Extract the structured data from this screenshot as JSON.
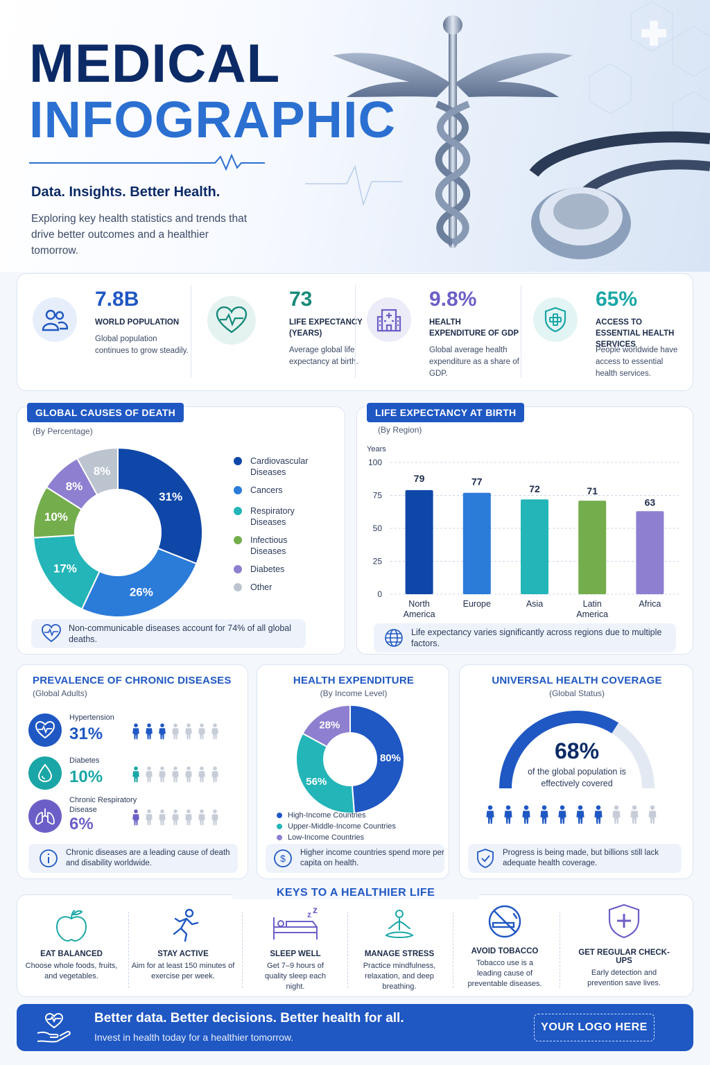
{
  "header": {
    "title_line1": "MEDICAL",
    "title_line2": "INFOGRAPHIC",
    "tagline": "Data. Insights. Better Health.",
    "description": "Exploring key health statistics and trends that drive better outcomes and a healthier tomorrow."
  },
  "stats": [
    {
      "value": "7.8B",
      "label": "WORLD POPULATION",
      "text": "Global population continues to grow steadily.",
      "icon": "people-icon",
      "color": "#1f57c3"
    },
    {
      "value": "73",
      "label": "LIFE EXPECTANCY (YEARS)",
      "text": "Average global life expectancy at birth.",
      "icon": "heart-pulse-icon",
      "color": "#178a7a"
    },
    {
      "value": "9.8%",
      "label": "HEALTH EXPENDITURE OF GDP",
      "text": "Global average health expenditure as a share of GDP.",
      "icon": "hospital-icon",
      "color": "#6b5fc7"
    },
    {
      "value": "65%",
      "label": "ACCESS TO ESSENTIAL HEALTH SERVICES",
      "text": "People worldwide have access to essential health services.",
      "icon": "shield-cross-icon",
      "color": "#1aa6a6"
    }
  ],
  "causes": {
    "title": "GLOBAL CAUSES OF DEATH",
    "subtitle": "(By Percentage)",
    "note": "Non-communicable diseases account for 74% of all global deaths."
  },
  "life": {
    "title": "LIFE EXPECTANCY AT BIRTH",
    "subtitle": "(By Region)",
    "note": "Life expectancy varies significantly across regions due to multiple factors."
  },
  "chart_data": [
    {
      "type": "pie",
      "title": "GLOBAL CAUSES OF DEATH",
      "subtitle": "(By Percentage)",
      "donut": true,
      "legend_position": "right",
      "categories": [
        "Cardiovascular Diseases",
        "Cancers",
        "Respiratory Diseases",
        "Infectious Diseases",
        "Diabetes",
        "Other"
      ],
      "values": [
        31,
        26,
        17,
        10,
        8,
        8
      ],
      "labels": [
        "31%",
        "26%",
        "17%",
        "10%",
        "8%",
        "8%"
      ],
      "colors": [
        "#0f47a8",
        "#2b7bd9",
        "#23b5b8",
        "#74ad4c",
        "#8e7fd0",
        "#bcc4d0"
      ]
    },
    {
      "type": "bar",
      "title": "LIFE EXPECTANCY AT BIRTH",
      "subtitle": "(By Region)",
      "ylabel": "Years",
      "ylim": [
        0,
        100
      ],
      "yticks": [
        0,
        25,
        50,
        75,
        100
      ],
      "grid": true,
      "categories": [
        "North America",
        "Europe",
        "Asia",
        "Latin America",
        "Africa"
      ],
      "values": [
        79,
        77,
        72,
        71,
        63
      ],
      "colors": [
        "#0f47a8",
        "#2b7bd9",
        "#23b5b8",
        "#74ad4c",
        "#8e7fd0"
      ]
    },
    {
      "type": "pie",
      "title": "HEALTH EXPENDITURE",
      "subtitle": "(By Income Level)",
      "donut": true,
      "legend_position": "bottom",
      "categories": [
        "High-Income Countries",
        "Upper-Middle-Income Countries",
        "Low-Income Countries"
      ],
      "values": [
        80,
        56,
        28
      ],
      "labels": [
        "80%",
        "56%",
        "28%"
      ],
      "colors": [
        "#1f57c3",
        "#23b5b8",
        "#8e7fd0"
      ]
    }
  ],
  "chronic": {
    "title": "PREVALENCE OF CHRONIC DISEASES",
    "subtitle": "(Global Adults)",
    "items": [
      {
        "name": "Hypertension",
        "value": "31%",
        "filled": 3,
        "total": 7,
        "color": "#1f57c3",
        "icon": "heart-pulse-icon"
      },
      {
        "name": "Diabetes",
        "value": "10%",
        "filled": 1,
        "total": 7,
        "color": "#1aa6a6",
        "icon": "drop-icon"
      },
      {
        "name": "Chronic Respiratory Disease",
        "value": "6%",
        "filled": 1,
        "total": 7,
        "color": "#6b5fc7",
        "icon": "lungs-icon"
      }
    ],
    "note": "Chronic diseases are a leading cause of death and disability worldwide."
  },
  "expenditure": {
    "title": "HEALTH EXPENDITURE",
    "subtitle": "(By Income Level)",
    "note": "Higher income countries spend more per capita on health."
  },
  "coverage": {
    "title": "UNIVERSAL HEALTH COVERAGE",
    "subtitle": "(Global Status)",
    "value": "68%",
    "percent": 68,
    "text": "of the global population is effectively covered",
    "filled": 7,
    "total": 10,
    "note": "Progress is being made, but billions still lack adequate health coverage."
  },
  "tips": {
    "title": "KEYS TO A HEALTHIER LIFE",
    "items": [
      {
        "title": "EAT BALANCED",
        "text": "Choose whole foods, fruits, and vegetables.",
        "icon": "apple-icon"
      },
      {
        "title": "STAY ACTIVE",
        "text": "Aim for at least 150 minutes of exercise per week.",
        "icon": "runner-icon"
      },
      {
        "title": "SLEEP WELL",
        "text": "Get 7–9 hours of quality sleep each night.",
        "icon": "bed-icon"
      },
      {
        "title": "MANAGE STRESS",
        "text": "Practice mindfulness, relaxation, and deep breathing.",
        "icon": "meditation-icon"
      },
      {
        "title": "AVOID TOBACCO",
        "text": "Tobacco use is a leading cause of preventable diseases.",
        "icon": "no-smoking-icon"
      },
      {
        "title": "GET REGULAR CHECK-UPS",
        "text": "Early detection and prevention save lives.",
        "icon": "shield-cross-icon"
      }
    ]
  },
  "footer": {
    "title": "Better data. Better decisions. Better health for all.",
    "subtitle": "Invest in health today for a healthier tomorrow.",
    "logo": "YOUR LOGO HERE"
  }
}
